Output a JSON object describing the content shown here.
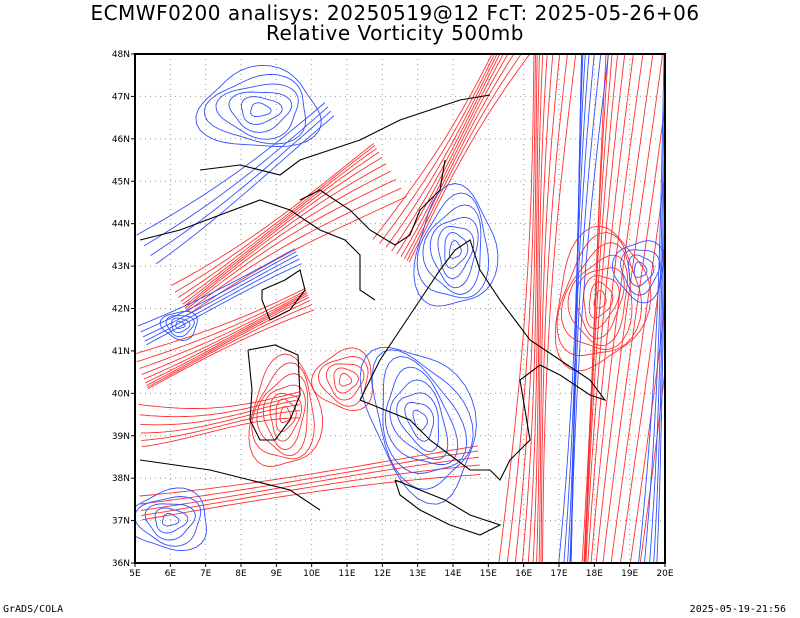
{
  "title_line1": "ECMWF0200 analisys: 20250519@12 FcT: 2025-05-26+06",
  "title_line2": "Relative Vorticity 500mb",
  "footer_left": "GrADS/COLA",
  "footer_right": "2025-05-19-21:56",
  "map": {
    "lon_range": [
      5,
      20
    ],
    "lat_range": [
      36,
      48
    ],
    "x_ticks": [
      "5E",
      "6E",
      "7E",
      "8E",
      "9E",
      "10E",
      "11E",
      "12E",
      "13E",
      "14E",
      "15E",
      "16E",
      "17E",
      "18E",
      "19E",
      "20E"
    ],
    "y_ticks": [
      "36N",
      "37N",
      "38N",
      "39N",
      "40N",
      "41N",
      "42N",
      "43N",
      "44N",
      "45N",
      "46N",
      "47N",
      "48N"
    ],
    "grid": "dotted",
    "colors": {
      "positive_contour": "#ff3030",
      "negative_contour": "#3050ff",
      "coastline": "#000000",
      "grid": "#999999"
    }
  }
}
